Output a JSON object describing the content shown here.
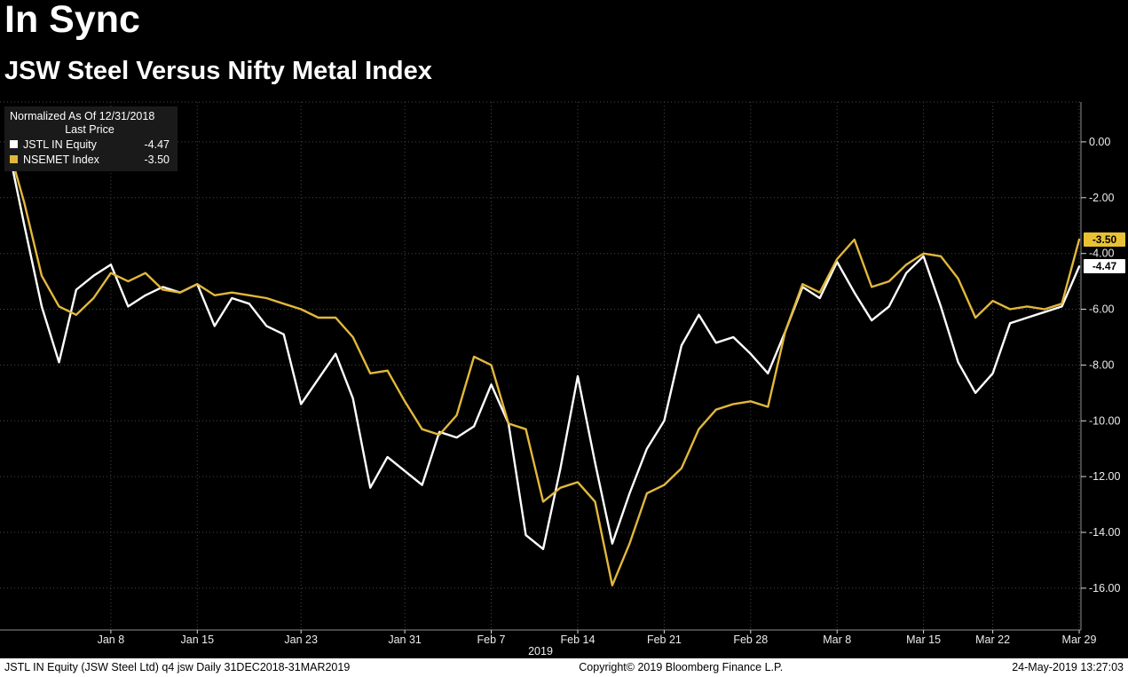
{
  "header": {
    "title": "In Sync",
    "subtitle": "JSW Steel Versus Nifty Metal Index"
  },
  "legend": {
    "normalized": "Normalized As Of 12/31/2018",
    "last_price": "Last Price",
    "items": [
      {
        "label": "JSTL IN Equity",
        "value": "-4.47",
        "color": "#FFFFFF"
      },
      {
        "label": "NSEMET Index",
        "value": "-3.50",
        "color": "#E2B83C"
      }
    ]
  },
  "axis": {
    "year_label": "2019"
  },
  "footer": {
    "left": "JSTL IN Equity (JSW Steel Ltd) q4 jsw  Daily 31DEC2018-31MAR2019",
    "center": "Copyright© 2019 Bloomberg Finance L.P.",
    "right": "24-May-2019 13:27:03"
  },
  "chart_data": {
    "type": "line",
    "title": "In Sync",
    "subtitle": "JSW Steel Versus Nifty Metal Index",
    "note": "Normalized As Of 12/31/2018, Last Price",
    "background": "#000000",
    "grid": true,
    "legend_position": "top-left",
    "ylabel": "",
    "xlabel": "2019",
    "ylim": [
      -17.5,
      1.43
    ],
    "x": [
      "12/31",
      "1/1",
      "1/2",
      "1/3",
      "1/4",
      "1/7",
      "1/8",
      "1/9",
      "1/10",
      "1/11",
      "1/14",
      "1/15",
      "1/16",
      "1/17",
      "1/18",
      "1/21",
      "1/22",
      "1/23",
      "1/24",
      "1/25",
      "1/28",
      "1/29",
      "1/30",
      "1/31",
      "2/1",
      "2/4",
      "2/5",
      "2/6",
      "2/7",
      "2/8",
      "2/11",
      "2/12",
      "2/13",
      "2/14",
      "2/15",
      "2/18",
      "2/19",
      "2/20",
      "2/21",
      "2/22",
      "2/25",
      "2/26",
      "2/27",
      "2/28",
      "3/1",
      "3/5",
      "3/6",
      "3/7",
      "3/8",
      "3/11",
      "3/12",
      "3/13",
      "3/14",
      "3/15",
      "3/18",
      "3/19",
      "3/20",
      "3/22",
      "3/25",
      "3/26",
      "3/27",
      "3/28",
      "3/29"
    ],
    "series": [
      {
        "name": "JSTL IN Equity",
        "color": "#FFFFFF",
        "last_price": -4.47,
        "values": [
          0.0,
          -3.0,
          -5.9,
          -7.9,
          -5.3,
          -4.8,
          -4.4,
          -5.9,
          -5.5,
          -5.2,
          -5.4,
          -5.1,
          -6.6,
          -5.6,
          -5.8,
          -6.6,
          -6.9,
          -9.4,
          -8.5,
          -7.6,
          -9.2,
          -12.4,
          -11.3,
          -11.8,
          -12.3,
          -10.4,
          -10.6,
          -10.2,
          -8.7,
          -10.1,
          -14.1,
          -14.6,
          -11.7,
          -8.4,
          -11.5,
          -14.4,
          -12.6,
          -11.0,
          -10.0,
          -7.3,
          -6.2,
          -7.2,
          -7.0,
          -7.6,
          -8.3,
          -6.8,
          -5.2,
          -5.6,
          -4.3,
          -5.4,
          -6.4,
          -5.9,
          -4.7,
          -4.1,
          -5.9,
          -7.9,
          -9.0,
          -8.3,
          -6.5,
          -6.3,
          -6.1,
          -5.9,
          -4.47
        ]
      },
      {
        "name": "NSEMET Index",
        "color": "#E2B83C",
        "last_price": -3.5,
        "values": [
          0.0,
          -2.2,
          -4.8,
          -5.9,
          -6.2,
          -5.6,
          -4.7,
          -5.0,
          -4.7,
          -5.3,
          -5.4,
          -5.1,
          -5.5,
          -5.4,
          -5.5,
          -5.6,
          -5.8,
          -6.0,
          -6.3,
          -6.3,
          -7.0,
          -8.3,
          -8.2,
          -9.3,
          -10.3,
          -10.5,
          -9.8,
          -7.7,
          -8.0,
          -10.1,
          -10.3,
          -12.9,
          -12.4,
          -12.2,
          -12.9,
          -15.9,
          -14.4,
          -12.6,
          -12.3,
          -11.7,
          -10.3,
          -9.6,
          -9.4,
          -9.3,
          -9.5,
          -6.8,
          -5.1,
          -5.4,
          -4.2,
          -3.5,
          -5.2,
          -5.0,
          -4.4,
          -4.0,
          -4.1,
          -4.9,
          -6.3,
          -5.7,
          -6.0,
          -5.9,
          -6.0,
          -5.8,
          -3.5
        ]
      }
    ],
    "x_ticks": [
      {
        "index": 6,
        "label": "Jan 8"
      },
      {
        "index": 11,
        "label": "Jan 15"
      },
      {
        "index": 17,
        "label": "Jan 23"
      },
      {
        "index": 23,
        "label": "Jan 31"
      },
      {
        "index": 28,
        "label": "Feb 7"
      },
      {
        "index": 33,
        "label": "Feb 14"
      },
      {
        "index": 38,
        "label": "Feb 21"
      },
      {
        "index": 43,
        "label": "Feb 28"
      },
      {
        "index": 48,
        "label": "Mar 8"
      },
      {
        "index": 53,
        "label": "Mar 15"
      },
      {
        "index": 57,
        "label": "Mar 22"
      },
      {
        "index": 62,
        "label": "Mar 29"
      }
    ],
    "y_ticks": [
      {
        "value": 0,
        "label": "0.00"
      },
      {
        "value": -2,
        "label": "-2.00"
      },
      {
        "value": -4,
        "label": "-4.00"
      },
      {
        "value": -6,
        "label": "-6.00"
      },
      {
        "value": -8,
        "label": "-8.00"
      },
      {
        "value": -10,
        "label": "-10.00"
      },
      {
        "value": -12,
        "label": "-12.00"
      },
      {
        "value": -14,
        "label": "-14.00"
      },
      {
        "value": -16,
        "label": "-16.00"
      }
    ],
    "badges": [
      {
        "value": -3.5,
        "label": "-3.50",
        "bg": "#E9C234",
        "fg": "#000000"
      },
      {
        "value": -4.47,
        "label": "-4.47",
        "bg": "#FFFFFF",
        "fg": "#000000"
      }
    ]
  }
}
